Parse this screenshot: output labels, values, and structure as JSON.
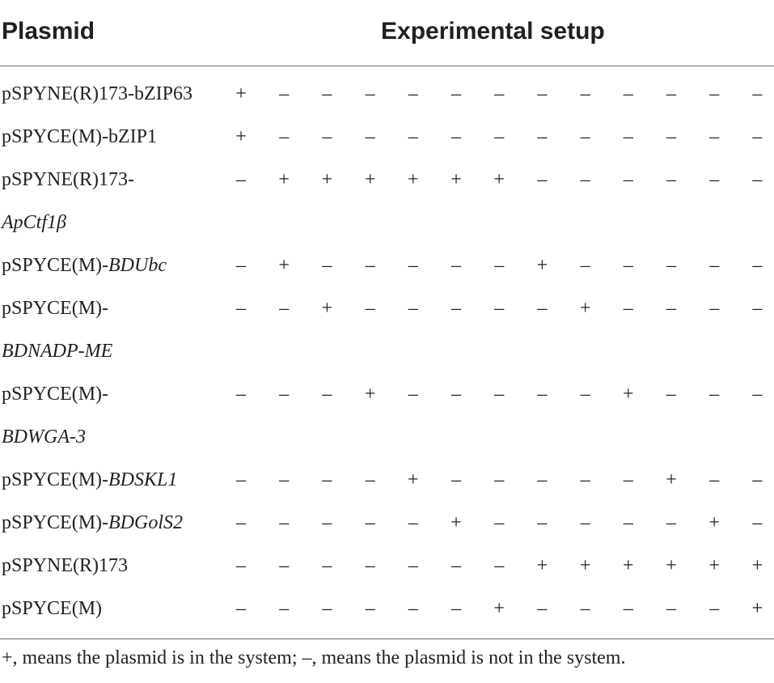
{
  "header": {
    "plasmid_label": "Plasmid",
    "setup_label": "Experimental setup"
  },
  "rows": [
    {
      "name": "pSPYNE(R)173-bZIP63",
      "name_italic": "",
      "cells": [
        "+",
        "–",
        "–",
        "–",
        "–",
        "–",
        "–",
        "–",
        "–",
        "–",
        "–",
        "–",
        "–"
      ]
    },
    {
      "name": "pSPYCE(M)-bZIP1",
      "name_italic": "",
      "cells": [
        "+",
        "–",
        "–",
        "–",
        "–",
        "–",
        "–",
        "–",
        "–",
        "–",
        "–",
        "–",
        "–"
      ]
    },
    {
      "name": "pSPYNE(R)173-",
      "name_italic": "",
      "cells": [
        "–",
        "+",
        "+",
        "+",
        "+",
        "+",
        "+",
        "–",
        "–",
        "–",
        "–",
        "–",
        "–"
      ]
    },
    {
      "name": "",
      "name_italic": "ApCtf1β",
      "cells": []
    },
    {
      "name": "pSPYCE(M)-",
      "name_italic": "BDUbc",
      "cells": [
        "–",
        "+",
        "–",
        "–",
        "–",
        "–",
        "–",
        "+",
        "–",
        "–",
        "–",
        "–",
        "–"
      ]
    },
    {
      "name": "pSPYCE(M)-",
      "name_italic": "",
      "cells": [
        "–",
        "–",
        "+",
        "–",
        "–",
        "–",
        "–",
        "–",
        "+",
        "–",
        "–",
        "–",
        "–"
      ]
    },
    {
      "name": "",
      "name_italic": "BDNADP-ME",
      "cells": []
    },
    {
      "name": "pSPYCE(M)-",
      "name_italic": "",
      "cells": [
        "–",
        "–",
        "–",
        "+",
        "–",
        "–",
        "–",
        "–",
        "–",
        "+",
        "–",
        "–",
        "–"
      ]
    },
    {
      "name": "",
      "name_italic": "BDWGA-3",
      "cells": []
    },
    {
      "name": "pSPYCE(M)-",
      "name_italic": "BDSKL1",
      "cells": [
        "–",
        "–",
        "–",
        "–",
        "+",
        "–",
        "–",
        "–",
        "–",
        "–",
        "+",
        "–",
        "–"
      ]
    },
    {
      "name": "pSPYCE(M)-",
      "name_italic": "BDGolS2",
      "cells": [
        "–",
        "–",
        "–",
        "–",
        "–",
        "+",
        "–",
        "–",
        "–",
        "–",
        "–",
        "+",
        "–"
      ]
    },
    {
      "name": "pSPYNE(R)173",
      "name_italic": "",
      "cells": [
        "–",
        "–",
        "–",
        "–",
        "–",
        "–",
        "–",
        "+",
        "+",
        "+",
        "+",
        "+",
        "+"
      ]
    },
    {
      "name": "pSPYCE(M)",
      "name_italic": "",
      "cells": [
        "–",
        "–",
        "–",
        "–",
        "–",
        "–",
        "+",
        "–",
        "–",
        "–",
        "–",
        "–",
        "+"
      ]
    }
  ],
  "footnote": "+, means the plasmid is in the system; –, means the plasmid is not in the system."
}
